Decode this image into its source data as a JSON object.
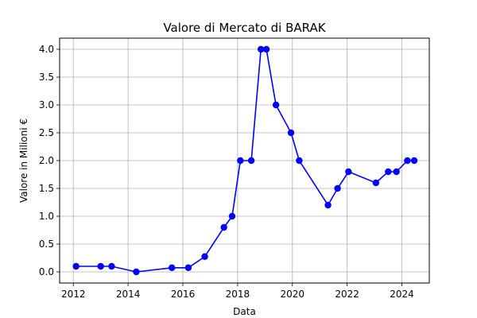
{
  "chart_data": {
    "type": "line",
    "title": "Valore di Mercato di BARAK",
    "xlabel": "Data",
    "ylabel": "Valore in Milioni €",
    "xlim": [
      2011.5,
      2025.0
    ],
    "ylim": [
      -0.2,
      4.2
    ],
    "xticks": [
      2012,
      2014,
      2016,
      2018,
      2020,
      2022,
      2024
    ],
    "xtick_labels": [
      "2012",
      "2014",
      "2016",
      "2018",
      "2020",
      "2022",
      "2024"
    ],
    "yticks": [
      0.0,
      0.5,
      1.0,
      1.5,
      2.0,
      2.5,
      3.0,
      3.5,
      4.0
    ],
    "ytick_labels": [
      "0.0",
      "0.5",
      "1.0",
      "1.5",
      "2.0",
      "2.5",
      "3.0",
      "3.5",
      "4.0"
    ],
    "grid": true,
    "color": "#0000ff",
    "series": [
      {
        "x": [
          2012.1,
          2013.0,
          2013.4,
          2014.3,
          2015.6,
          2016.2,
          2016.8,
          2017.5,
          2017.8,
          2018.1,
          2018.5,
          2018.85,
          2019.05,
          2019.4,
          2019.95,
          2020.25,
          2021.3,
          2021.65,
          2022.05,
          2023.05,
          2023.5,
          2023.8,
          2024.2,
          2024.45
        ],
        "y": [
          0.1,
          0.1,
          0.1,
          0.0,
          0.075,
          0.075,
          0.275,
          0.8,
          1.0,
          2.0,
          2.0,
          4.0,
          4.0,
          3.0,
          2.5,
          2.0,
          1.2,
          1.5,
          1.8,
          1.6,
          1.8,
          1.8,
          2.0,
          2.0
        ]
      }
    ]
  }
}
